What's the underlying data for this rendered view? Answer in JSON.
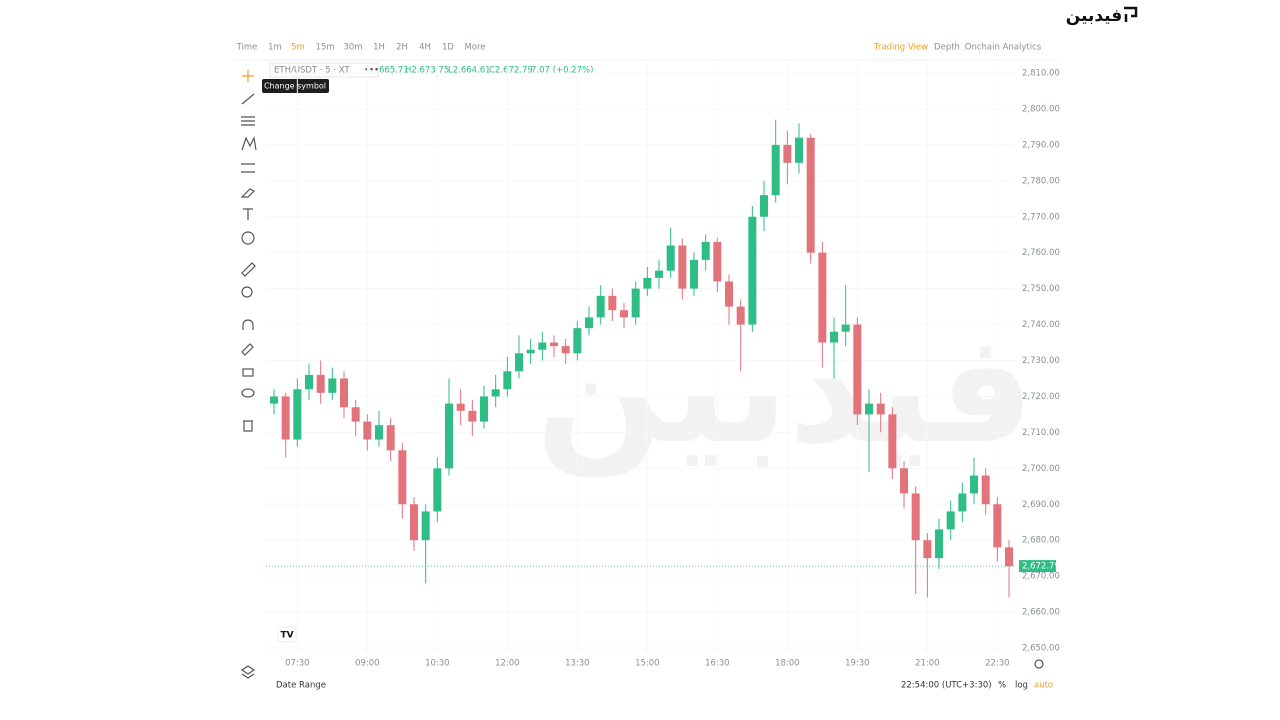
{
  "brand": "فیدبین",
  "toolbar": {
    "intervals": [
      "Time",
      "1m",
      "5m",
      "15m",
      "30m",
      "1H",
      "2H",
      "4H",
      "1D",
      "More"
    ],
    "active_interval": "5m",
    "views": [
      "Trading View",
      "Depth",
      "Onchain Analytics"
    ],
    "active_view": "Trading View"
  },
  "legend": {
    "symbol": "ETH/USDT · 5 · XT",
    "open": "665.71",
    "high": "H2,673.75",
    "low": "L2,664.61",
    "close": "C2,672.79",
    "change": "7.07 (+0.27%)"
  },
  "tooltip": "Change symbol",
  "chart_data": {
    "type": "candlestick",
    "x": [
      "07:00",
      "07:15",
      "07:30",
      "07:45",
      "08:00",
      "08:15",
      "08:30",
      "08:45",
      "09:00",
      "09:15",
      "09:30",
      "09:45",
      "10:00",
      "10:15",
      "10:30",
      "10:45",
      "11:00",
      "11:15",
      "11:30",
      "11:45",
      "12:00",
      "12:15",
      "12:30",
      "12:45",
      "13:00",
      "13:15",
      "13:30",
      "13:45",
      "14:00",
      "14:15",
      "14:30",
      "14:45",
      "15:00",
      "15:15",
      "15:30",
      "15:45",
      "16:00",
      "16:15",
      "16:30",
      "16:45",
      "17:00",
      "17:15",
      "17:30",
      "17:45",
      "18:00",
      "18:15",
      "18:30",
      "18:45",
      "19:00",
      "19:15",
      "19:30",
      "19:45",
      "20:00",
      "20:15",
      "20:30",
      "20:45",
      "21:00",
      "21:15",
      "21:30",
      "21:45",
      "22:00",
      "22:15",
      "22:30",
      "22:45"
    ],
    "open": [
      2718,
      2720,
      2708,
      2722,
      2726,
      2721,
      2725,
      2717,
      2713,
      2708,
      2712,
      2705,
      2690,
      2680,
      2688,
      2700,
      2718,
      2716,
      2713,
      2720,
      2722,
      2727,
      2732,
      2733,
      2735,
      2734,
      2732,
      2739,
      2742,
      2748,
      2744,
      2742,
      2750,
      2753,
      2755,
      2762,
      2750,
      2758,
      2763,
      2752,
      2745,
      2740,
      2770,
      2776,
      2790,
      2785,
      2792,
      2760,
      2735,
      2738,
      2740,
      2715,
      2718,
      2715,
      2700,
      2693,
      2680,
      2675,
      2683,
      2688,
      2693,
      2698,
      2690,
      2678
    ],
    "high": [
      2722,
      2721,
      2725,
      2729,
      2730,
      2728,
      2727,
      2719,
      2715,
      2716,
      2714,
      2707,
      2692,
      2690,
      2703,
      2725,
      2722,
      2719,
      2723,
      2726,
      2731,
      2737,
      2736,
      2738,
      2737,
      2736,
      2741,
      2745,
      2751,
      2750,
      2746,
      2752,
      2756,
      2758,
      2767,
      2764,
      2760,
      2765,
      2764,
      2754,
      2747,
      2773,
      2780,
      2797,
      2794,
      2796,
      2793,
      2763,
      2742,
      2751,
      2742,
      2722,
      2721,
      2717,
      2702,
      2695,
      2682,
      2686,
      2691,
      2696,
      2703,
      2700,
      2692,
      2680
    ],
    "low": [
      2715,
      2703,
      2706,
      2719,
      2718,
      2719,
      2714,
      2709,
      2705,
      2706,
      2702,
      2686,
      2677,
      2668,
      2685,
      2698,
      2712,
      2709,
      2711,
      2717,
      2720,
      2725,
      2729,
      2730,
      2731,
      2729,
      2730,
      2737,
      2740,
      2741,
      2739,
      2740,
      2748,
      2750,
      2753,
      2747,
      2748,
      2755,
      2749,
      2740,
      2727,
      2738,
      2766,
      2774,
      2779,
      2782,
      2757,
      2728,
      2725,
      2734,
      2712,
      2699,
      2710,
      2697,
      2689,
      2665,
      2664,
      2672,
      2680,
      2685,
      2690,
      2687,
      2674,
      2664
    ],
    "close": [
      2720,
      2708,
      2722,
      2726,
      2721,
      2725,
      2717,
      2713,
      2708,
      2712,
      2705,
      2690,
      2680,
      2688,
      2700,
      2718,
      2716,
      2713,
      2720,
      2722,
      2727,
      2732,
      2733,
      2735,
      2734,
      2732,
      2739,
      2742,
      2748,
      2744,
      2742,
      2750,
      2753,
      2755,
      2762,
      2750,
      2758,
      2763,
      2752,
      2745,
      2740,
      2770,
      2776,
      2790,
      2785,
      2792,
      2760,
      2735,
      2738,
      2740,
      2715,
      2718,
      2715,
      2700,
      2693,
      2680,
      2675,
      2683,
      2688,
      2693,
      2698,
      2690,
      2678,
      2672.79
    ],
    "up_color": "#2ebd85",
    "down_color": "#e2737b",
    "last_price_label": "2,672.79",
    "ylim": [
      2650,
      2810
    ],
    "yticks": [
      {
        "value": 2650,
        "label": "2,650.00"
      },
      {
        "value": 2660,
        "label": "2,660.00"
      },
      {
        "value": 2670,
        "label": "2,670.00"
      },
      {
        "value": 2680,
        "label": "2,680.00"
      },
      {
        "value": 2690,
        "label": "2,690.00"
      },
      {
        "value": 2700,
        "label": "2,700.00"
      },
      {
        "value": 2710,
        "label": "2,710.00"
      },
      {
        "value": 2720,
        "label": "2,720.00"
      },
      {
        "value": 2730,
        "label": "2,730.00"
      },
      {
        "value": 2740,
        "label": "2,740.00"
      },
      {
        "value": 2750,
        "label": "2,750.00"
      },
      {
        "value": 2760,
        "label": "2,760.00"
      },
      {
        "value": 2770,
        "label": "2,770.00"
      },
      {
        "value": 2780,
        "label": "2,780.00"
      },
      {
        "value": 2790,
        "label": "2,790.00"
      },
      {
        "value": 2800,
        "label": "2,800.00"
      },
      {
        "value": 2810,
        "label": "2,810.00"
      }
    ],
    "xticks": [
      "07:30",
      "09:00",
      "10:30",
      "12:00",
      "13:30",
      "15:00",
      "16:30",
      "18:00",
      "19:30",
      "21:00",
      "22:30"
    ],
    "grid": true
  },
  "footer": {
    "date_range": "Date Range",
    "time": "22:54:00 (UTC+3:30)",
    "percent": "%",
    "log": "log",
    "auto": "auto"
  }
}
